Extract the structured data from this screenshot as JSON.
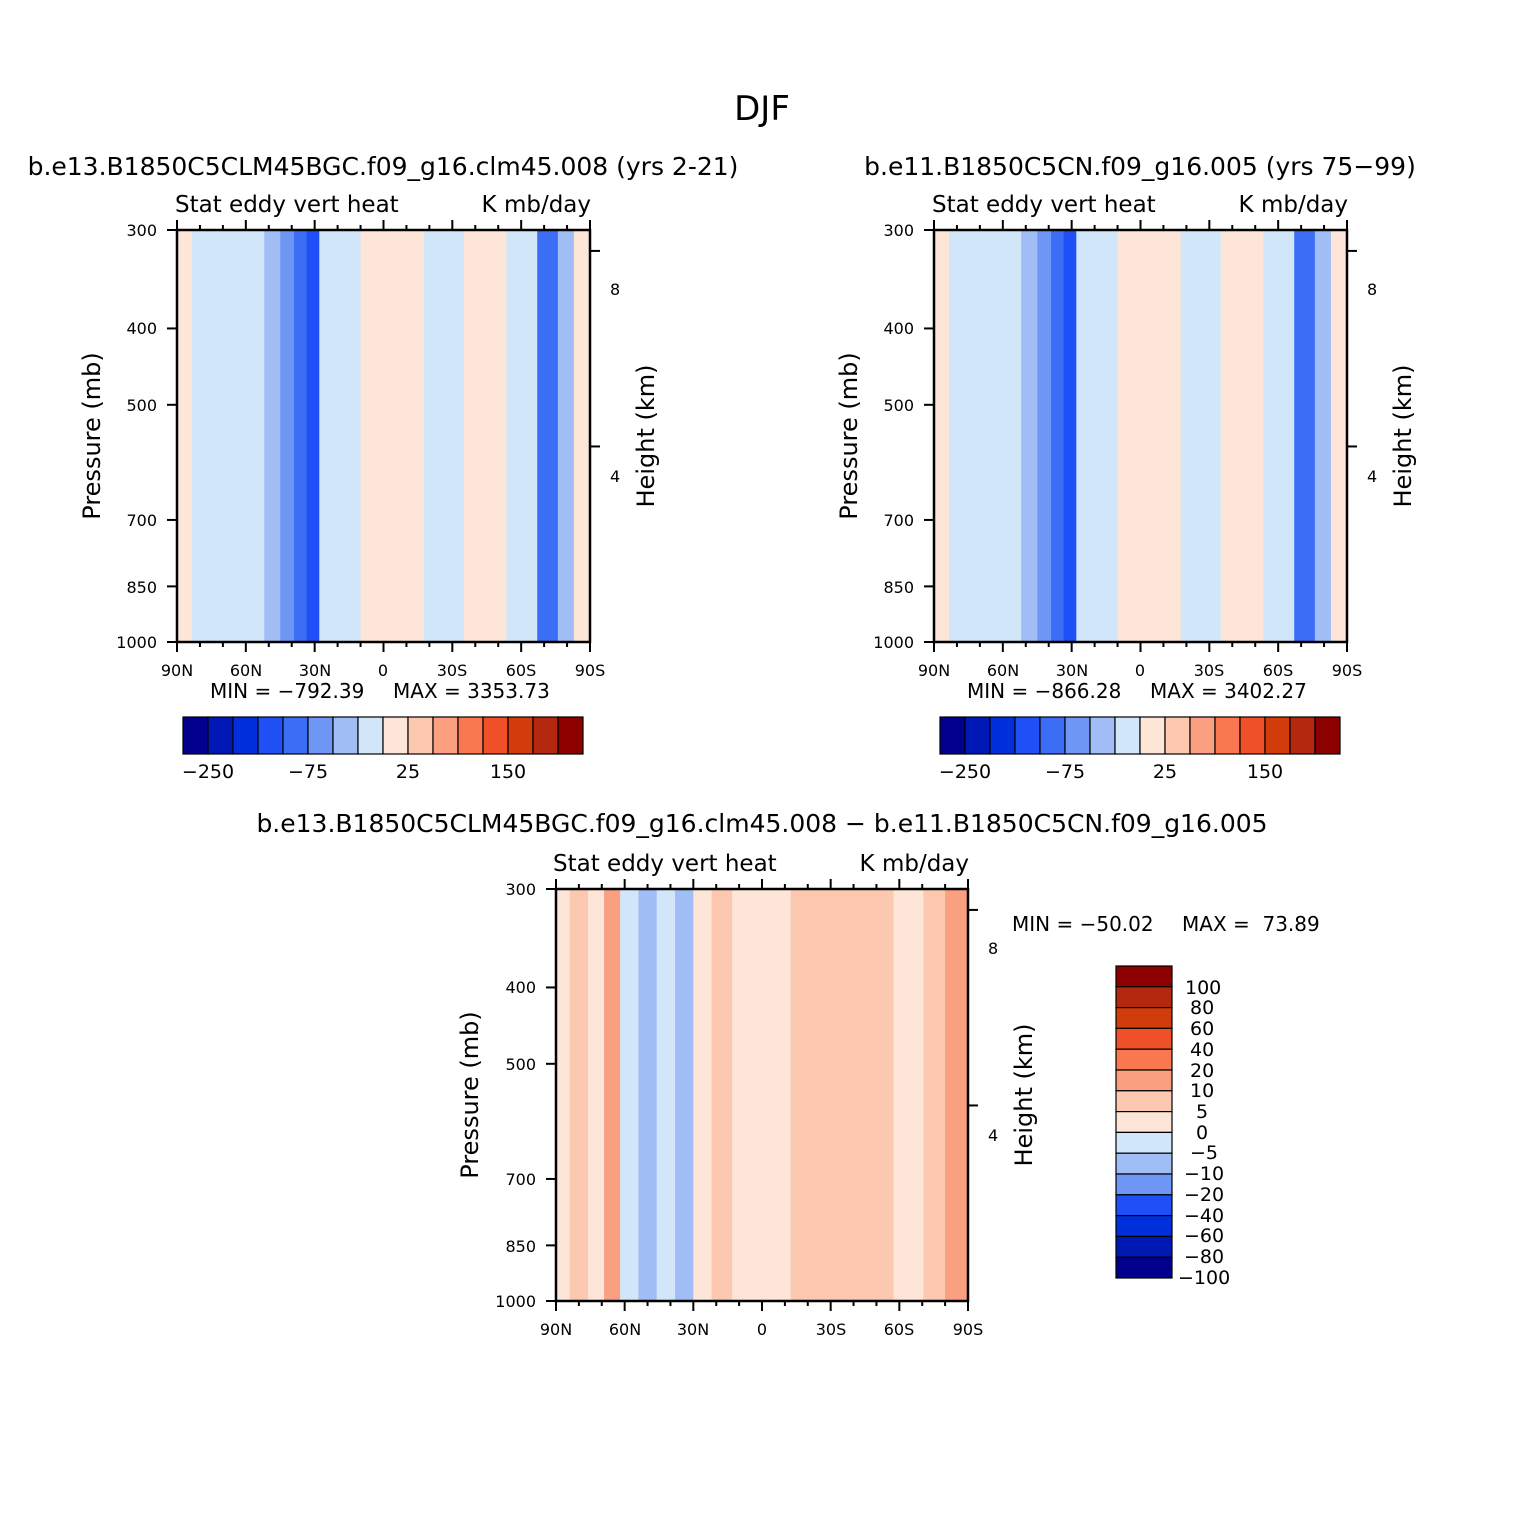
{
  "figure_title": "DJF",
  "colors": {
    "levels_full": [
      "#00008c",
      "#0018b4",
      "#0030dc",
      "#1e50f5",
      "#3c6ef5",
      "#6e96f5",
      "#a0bef5",
      "#d2e6fa",
      "#fde6d8",
      "#fcc8b0",
      "#faa080",
      "#fa7850",
      "#f05028",
      "#d23c0a",
      "#b42810",
      "#8c0000"
    ],
    "diff_levels": [
      "#00008c",
      "#0018b4",
      "#0030dc",
      "#1e50f5",
      "#6e96f5",
      "#a0bef5",
      "#d2e6fa",
      "#fde6d8",
      "#fcc8b0",
      "#faa080",
      "#fa7850",
      "#f05028",
      "#d23c0a",
      "#b42810",
      "#8c0000"
    ]
  },
  "chart_data": [
    {
      "type": "heatmap",
      "title": "b.e13.B1850C5CLM45BGC.f09_g16.clm45.008 (yrs 2-21)",
      "subtitle_left": "Stat eddy vert heat",
      "subtitle_right": "K mb/day",
      "xlabel": "",
      "ylabel": "Pressure (mb)",
      "ylabel_right": "Height (km)",
      "x_ticks": [
        "90N",
        "60N",
        "30N",
        "0",
        "30S",
        "60S",
        "90S"
      ],
      "y_ticks": [
        "300",
        "400",
        "500",
        "700",
        "850",
        "1000"
      ],
      "y_right_ticks": [
        "8",
        "4"
      ],
      "ylim": [
        1000,
        300
      ],
      "min_label": "MIN = −792.39",
      "max_label": "MAX = 3353.73",
      "colorbar_labels": [
        "−250",
        "−75",
        "25",
        "150"
      ],
      "field": [
        {
          "lat": 87,
          "v": 0
        },
        {
          "lat": 80,
          "v": -5
        },
        {
          "lat": 72,
          "v": -10
        },
        {
          "lat": 64,
          "v": -5
        },
        {
          "lat": 56,
          "v": -20
        },
        {
          "lat": 48,
          "v": -40
        },
        {
          "lat": 42,
          "v": -60
        },
        {
          "lat": 36,
          "v": -80
        },
        {
          "lat": 31,
          "v": -120
        },
        {
          "lat": 25,
          "v": -5
        },
        {
          "lat": 15,
          "v": -5
        },
        {
          "lat": 5,
          "v": 5
        },
        {
          "lat": -10,
          "v": 15
        },
        {
          "lat": -25,
          "v": -5
        },
        {
          "lat": -45,
          "v": 5
        },
        {
          "lat": -62,
          "v": -10
        },
        {
          "lat": -72,
          "v": -100
        },
        {
          "lat": -80,
          "v": -40
        },
        {
          "lat": -86,
          "v": 20
        }
      ]
    },
    {
      "type": "heatmap",
      "title": "b.e11.B1850C5CN.f09_g16.005 (yrs 75−99)",
      "subtitle_left": "Stat eddy vert heat",
      "subtitle_right": "K mb/day",
      "xlabel": "",
      "ylabel": "Pressure (mb)",
      "ylabel_right": "Height (km)",
      "x_ticks": [
        "90N",
        "60N",
        "30N",
        "0",
        "30S",
        "60S",
        "90S"
      ],
      "y_ticks": [
        "300",
        "400",
        "500",
        "700",
        "850",
        "1000"
      ],
      "y_right_ticks": [
        "8",
        "4"
      ],
      "ylim": [
        1000,
        300
      ],
      "min_label": "MIN = −866.28",
      "max_label": "MAX = 3402.27",
      "colorbar_labels": [
        "−250",
        "−75",
        "25",
        "150"
      ],
      "field": [
        {
          "lat": 87,
          "v": 0
        },
        {
          "lat": 80,
          "v": -5
        },
        {
          "lat": 72,
          "v": -10
        },
        {
          "lat": 64,
          "v": -5
        },
        {
          "lat": 56,
          "v": -20
        },
        {
          "lat": 48,
          "v": -40
        },
        {
          "lat": 42,
          "v": -60
        },
        {
          "lat": 36,
          "v": -80
        },
        {
          "lat": 31,
          "v": -120
        },
        {
          "lat": 25,
          "v": -5
        },
        {
          "lat": 15,
          "v": -5
        },
        {
          "lat": 5,
          "v": 5
        },
        {
          "lat": -10,
          "v": 15
        },
        {
          "lat": -25,
          "v": -5
        },
        {
          "lat": -45,
          "v": 5
        },
        {
          "lat": -62,
          "v": -10
        },
        {
          "lat": -72,
          "v": -100
        },
        {
          "lat": -80,
          "v": -40
        },
        {
          "lat": -86,
          "v": 20
        }
      ]
    },
    {
      "type": "heatmap",
      "title": "b.e13.B1850C5CLM45BGC.f09_g16.clm45.008 − b.e11.B1850C5CN.f09_g16.005",
      "subtitle_left": "Stat eddy vert heat",
      "subtitle_right": "K mb/day",
      "xlabel": "",
      "ylabel": "Pressure (mb)",
      "ylabel_right": "Height (km)",
      "x_ticks": [
        "90N",
        "60N",
        "30N",
        "0",
        "30S",
        "60S",
        "90S"
      ],
      "y_ticks": [
        "300",
        "400",
        "500",
        "700",
        "850",
        "1000"
      ],
      "y_right_ticks": [
        "8",
        "4"
      ],
      "ylim": [
        1000,
        300
      ],
      "min_label": "MIN = −50.02",
      "max_label": "MAX =  73.89",
      "colorbar_labels": [
        "100",
        "80",
        "60",
        "40",
        "20",
        "10",
        "5",
        "0",
        "−5",
        "−10",
        "−20",
        "−40",
        "−60",
        "−80",
        "−100"
      ],
      "field": [
        {
          "lat": 88,
          "v": -3
        },
        {
          "lat": 80,
          "v": 3
        },
        {
          "lat": 72,
          "v": -5
        },
        {
          "lat": 66,
          "v": 5
        },
        {
          "lat": 58,
          "v": -10
        },
        {
          "lat": 50,
          "v": -15
        },
        {
          "lat": 42,
          "v": -10
        },
        {
          "lat": 34,
          "v": -15
        },
        {
          "lat": 26,
          "v": -5
        },
        {
          "lat": 18,
          "v": 3
        },
        {
          "lat": 8,
          "v": -3
        },
        {
          "lat": -5,
          "v": -3
        },
        {
          "lat": -20,
          "v": 3
        },
        {
          "lat": -35,
          "v": 3
        },
        {
          "lat": -50,
          "v": 3
        },
        {
          "lat": -65,
          "v": -3
        },
        {
          "lat": -76,
          "v": 3
        },
        {
          "lat": -84,
          "v": 8
        }
      ]
    }
  ]
}
